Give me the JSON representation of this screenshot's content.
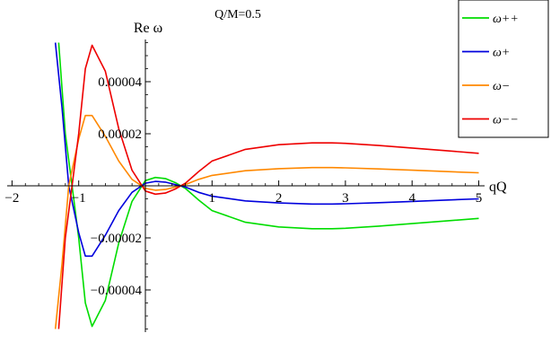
{
  "chart_data": {
    "type": "line",
    "title": "Q/M=0.5",
    "xlabel": "qQ",
    "ylabel": "Re ω",
    "xlim": [
      -2.1,
      5.05
    ],
    "ylim": [
      -5.8e-05,
      5.8e-05
    ],
    "x_ticks": [
      -2,
      -1,
      1,
      2,
      3,
      4,
      5
    ],
    "x_tick_labels": [
      "−2",
      "−1",
      "1",
      "2",
      "3",
      "4",
      "5"
    ],
    "y_ticks": [
      -4e-05,
      -2e-05,
      2e-05,
      4e-05
    ],
    "y_tick_labels": [
      "−0.00004",
      "−0.00002",
      "0.00002",
      "0.00004"
    ],
    "legend_position": "top-right",
    "series": [
      {
        "name": "ω++",
        "color": "#00dd00",
        "x": [
          -1.3,
          -1.2,
          -1.1,
          -1.0,
          -0.9,
          -0.8,
          -0.6,
          -0.4,
          -0.2,
          0.0,
          0.15,
          0.3,
          0.45,
          0.6,
          0.8,
          1.0,
          1.5,
          2.0,
          2.5,
          2.8,
          3.0,
          3.5,
          4.0,
          4.5,
          5.0
        ],
        "y": [
          5.5e-05,
          2e-05,
          0.0,
          -2e-05,
          -4.5e-05,
          -5.4e-05,
          -4.4e-05,
          -2.2e-05,
          -6e-06,
          2e-06,
          3.2e-06,
          2.8e-06,
          1.2e-06,
          -1e-06,
          -5.5e-06,
          -9.5e-06,
          -1.4e-05,
          -1.58e-05,
          -1.65e-05,
          -1.65e-05,
          -1.63e-05,
          -1.55e-05,
          -1.45e-05,
          -1.35e-05,
          -1.25e-05
        ]
      },
      {
        "name": "ω+",
        "color": "#0000dd",
        "x": [
          -1.35,
          -1.25,
          -1.15,
          -1.0,
          -0.9,
          -0.8,
          -0.6,
          -0.4,
          -0.2,
          0.0,
          0.15,
          0.3,
          0.45,
          0.6,
          0.8,
          1.0,
          1.5,
          2.0,
          2.5,
          2.8,
          3.0,
          3.5,
          4.0,
          4.5,
          5.0
        ],
        "y": [
          5.5e-05,
          3e-05,
          0.0,
          -1.8e-05,
          -2.7e-05,
          -2.7e-05,
          -1.9e-05,
          -9.5e-06,
          -2.5e-06,
          1e-06,
          1.7e-06,
          1.4e-06,
          5e-07,
          -5e-07,
          -2.5e-06,
          -4e-06,
          -5.8e-06,
          -6.6e-06,
          -7e-06,
          -7e-06,
          -6.9e-06,
          -6.5e-06,
          -6e-06,
          -5.5e-06,
          -5e-06
        ]
      },
      {
        "name": "ω−",
        "color": "#ff8800",
        "x": [
          -1.35,
          -1.25,
          -1.15,
          -1.0,
          -0.9,
          -0.8,
          -0.6,
          -0.4,
          -0.2,
          0.0,
          0.15,
          0.3,
          0.45,
          0.6,
          0.8,
          1.0,
          1.5,
          2.0,
          2.5,
          2.8,
          3.0,
          3.5,
          4.0,
          4.5,
          5.0
        ],
        "y": [
          -5.5e-05,
          -3e-05,
          0.0,
          1.8e-05,
          2.7e-05,
          2.7e-05,
          1.9e-05,
          9.5e-06,
          2.5e-06,
          -1e-06,
          -1.7e-06,
          -1.4e-06,
          -5e-07,
          5e-07,
          2.5e-06,
          4e-06,
          5.8e-06,
          6.6e-06,
          7e-06,
          7e-06,
          6.9e-06,
          6.5e-06,
          6e-06,
          5.5e-06,
          5e-06
        ]
      },
      {
        "name": "ω−−",
        "color": "#ee0000",
        "x": [
          -1.3,
          -1.2,
          -1.1,
          -1.0,
          -0.9,
          -0.8,
          -0.6,
          -0.4,
          -0.2,
          0.0,
          0.15,
          0.3,
          0.45,
          0.6,
          0.8,
          1.0,
          1.5,
          2.0,
          2.5,
          2.8,
          3.0,
          3.5,
          4.0,
          4.5,
          5.0
        ],
        "y": [
          -5.5e-05,
          -2e-05,
          0.0,
          2e-05,
          4.5e-05,
          5.4e-05,
          4.4e-05,
          2.2e-05,
          6e-06,
          -2e-06,
          -3.2e-06,
          -2.8e-06,
          -1.2e-06,
          1e-06,
          5.5e-06,
          9.5e-06,
          1.4e-05,
          1.58e-05,
          1.65e-05,
          1.65e-05,
          1.63e-05,
          1.55e-05,
          1.45e-05,
          1.35e-05,
          1.25e-05
        ]
      }
    ]
  }
}
